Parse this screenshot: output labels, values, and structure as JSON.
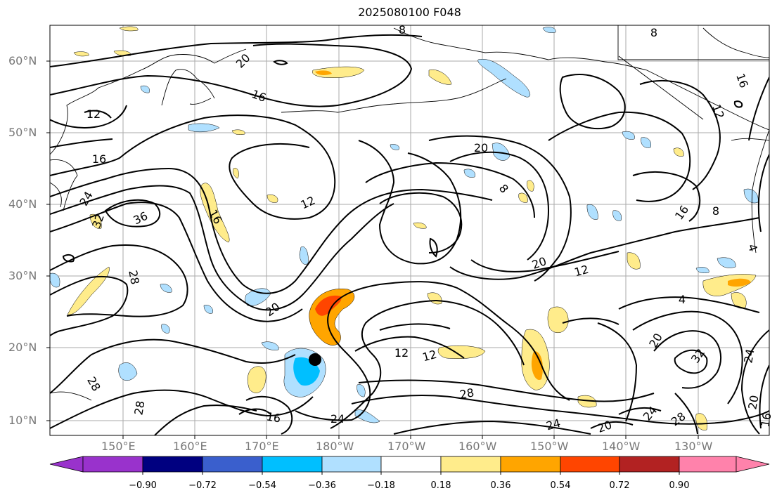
{
  "title": "2025080100 F048",
  "lat_labels": [
    "60°N",
    "50°N",
    "40°N",
    "30°N",
    "20°N",
    "10°N"
  ],
  "lon_labels": [
    "150°E",
    "160°E",
    "170°E",
    "180°W",
    "170°W",
    "160°W",
    "150°W",
    "140°W",
    "130°W"
  ],
  "contour_labels": [
    "8",
    "8",
    "20",
    "16",
    "12",
    "16",
    "24",
    "32",
    "36",
    "28",
    "16",
    "12",
    "20",
    "20",
    "8",
    "16",
    "8",
    "20",
    "12",
    "4",
    "20",
    "32",
    "24",
    "20",
    "24",
    "28",
    "20",
    "24",
    "28",
    "16",
    "12",
    "12",
    "28",
    "28",
    "24",
    "16",
    "12",
    "4",
    "16"
  ],
  "colorbar": {
    "ticks": [
      "−0.90",
      "−0.72",
      "−0.54",
      "−0.36",
      "−0.18",
      "0.18",
      "0.36",
      "0.54",
      "0.72",
      "0.90"
    ],
    "colors": [
      "#9932cc",
      "#000080",
      "#3a5fcd",
      "#00bfff",
      "#b0e0ff",
      "#ffffff",
      "#ffec8b",
      "#ffa500",
      "#ff4500",
      "#b22222",
      "#ff82ab"
    ]
  },
  "storm_marker": "black-dot"
}
